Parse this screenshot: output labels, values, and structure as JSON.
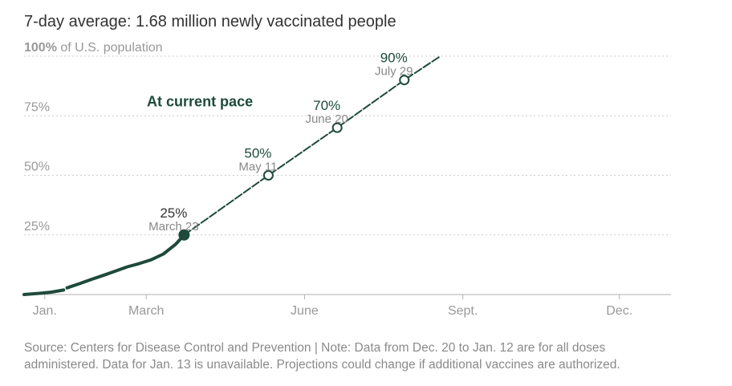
{
  "headline": "7-day average: 1.68 million newly vaccinated people",
  "source_note": "Source: Centers for Disease Control and Prevention | Note: Data from Dec. 20 to Jan. 12 are for all doses administered. Data for Jan. 13 is unavailable. Projections could change if additional vaccines are authorized.",
  "colors": {
    "line": "#1e4a3b",
    "grid": "#cccccc",
    "axis": "#b0b0b0",
    "tick_text": "#999999",
    "label_dark": "#333333",
    "label_sub": "#888888"
  },
  "chart_data": {
    "type": "line",
    "title": "7-day average: 1.68 million newly vaccinated people",
    "xlabel": "",
    "ylabel": "",
    "x_domain": [
      "2020-12-20",
      "2021-12-31"
    ],
    "ylim": [
      0,
      100
    ],
    "y_ticks": [
      {
        "value": 100,
        "bold": "100%",
        "suffix": " of U.S. population"
      },
      {
        "value": 75,
        "bold": "75%",
        "suffix": ""
      },
      {
        "value": 50,
        "bold": "50%",
        "suffix": ""
      },
      {
        "value": 25,
        "bold": "25%",
        "suffix": ""
      }
    ],
    "x_ticks": [
      {
        "date": "2021-01-01",
        "label": "Jan."
      },
      {
        "date": "2021-03-01",
        "label": "March"
      },
      {
        "date": "2021-06-01",
        "label": "June"
      },
      {
        "date": "2021-09-01",
        "label": "Sept."
      },
      {
        "date": "2021-12-01",
        "label": "Dec."
      }
    ],
    "grid": true,
    "series": [
      {
        "style": "solid",
        "points": [
          [
            "2020-12-20",
            0.0
          ],
          [
            "2020-12-29",
            0.5
          ],
          [
            "2021-01-05",
            1.0
          ],
          [
            "2021-01-12",
            1.9
          ]
        ]
      },
      {
        "style": "solid",
        "points": [
          [
            "2021-01-14",
            2.8
          ],
          [
            "2021-01-21",
            4.5
          ],
          [
            "2021-01-28",
            6.3
          ],
          [
            "2021-02-04",
            8.0
          ],
          [
            "2021-02-11",
            9.8
          ],
          [
            "2021-02-18",
            11.6
          ],
          [
            "2021-02-25",
            13.0
          ],
          [
            "2021-03-04",
            14.6
          ],
          [
            "2021-03-11",
            17.0
          ],
          [
            "2021-03-18",
            21.0
          ],
          [
            "2021-03-23",
            25.0
          ]
        ]
      },
      {
        "name": "At current pace",
        "style": "dashed",
        "points": [
          [
            "2021-03-23",
            25.0
          ],
          [
            "2021-05-11",
            50.0
          ],
          [
            "2021-06-20",
            70.0
          ],
          [
            "2021-07-29",
            90.0
          ],
          [
            "2021-08-19",
            100.0
          ]
        ]
      }
    ],
    "milestones": [
      {
        "percent_label": "25%",
        "date_label": "March 23",
        "date": "2021-03-23",
        "value": 25,
        "filled": true
      },
      {
        "percent_label": "50%",
        "date_label": "May 11",
        "date": "2021-05-11",
        "value": 50,
        "filled": false
      },
      {
        "percent_label": "70%",
        "date_label": "June 20",
        "date": "2021-06-20",
        "value": 70,
        "filled": false
      },
      {
        "percent_label": "90%",
        "date_label": "July 29",
        "date": "2021-07-29",
        "value": 90,
        "filled": false
      }
    ],
    "annotations": [
      {
        "text": "At current pace",
        "date": "2021-05-02",
        "value": 79
      }
    ]
  }
}
